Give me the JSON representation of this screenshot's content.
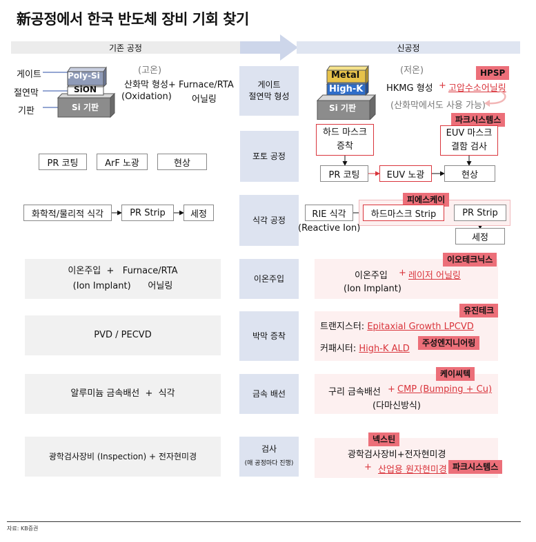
{
  "title": "新공정에서 한국 반도체 장비 기회 찾기",
  "headers": {
    "old": "기존 공정",
    "new": "신공정"
  },
  "categories": [
    {
      "label1": "게이트",
      "label2": "절연막 형성"
    },
    {
      "label1": "포토 공정"
    },
    {
      "label1": "식각 공정"
    },
    {
      "label1": "이온주입"
    },
    {
      "label1": "박막 증착"
    },
    {
      "label1": "금속 배선"
    },
    {
      "label1": "검사",
      "note": "(매 공정마다 진행)"
    }
  ],
  "gate_old": {
    "label_gate": "게이트",
    "label_insul": "절연막",
    "label_sub": "기판",
    "layer_top": "Poly-Si",
    "layer_mid": "SiON",
    "layer_sub": "Si 기판",
    "temp": "(고온)",
    "line1": "산화막 형성+ Furnace/RTA",
    "line2a": "(Oxidation)",
    "line2b": "어닐링"
  },
  "gate_new": {
    "layer_top": "Metal",
    "layer_mid": "High-K",
    "layer_sub": "Si 기판",
    "temp": "(저온)",
    "hkmg": "HKMG 형성",
    "plus": "+",
    "hpsp_item": "고압수소어닐링",
    "note": "(산화막에서도 사용 가능)",
    "tag": "HPSP"
  },
  "photo_old": {
    "n1": "PR 코팅",
    "n2": "ArF 노광",
    "n3": "현상"
  },
  "photo_new": {
    "hard": "하드 마스크\n증착",
    "euv_mask": "EUV 마스크\n결함 검사",
    "n1": "PR 코팅",
    "n2": "EUV 노광",
    "n3": "현상",
    "tag": "파크시스템스"
  },
  "etch_old": {
    "n1": "화학적/물리적 식각",
    "n2": "PR Strip",
    "n3": "세정"
  },
  "etch_new": {
    "rie": "RIE 식각",
    "rie_sub": "(Reactive Ion)",
    "n2": "하드마스크 Strip",
    "n3": "PR Strip",
    "n4": "세정",
    "tag": "피에스케이"
  },
  "ion_old": {
    "line1": "이온주입  +   Furnace/RTA",
    "line2": "(Ion Implant)      어닐링"
  },
  "ion_new": {
    "a": "이온주입",
    "plus": "+",
    "b": "레이저 어닐링",
    "sub": "(Ion Implant)",
    "tag": "이오테크닉스"
  },
  "depo_old": {
    "line1": "PVD / PECVD"
  },
  "depo_new": {
    "l1a": "트랜지스터: ",
    "l1b": "Epitaxial Growth LPCVD",
    "l2a": "커패시터: ",
    "l2b": "High-K ALD",
    "tag1": "유진테크",
    "tag2": "주성엔지니어링"
  },
  "metal_old": {
    "line1": "알루미늄 금속배선  +  식각"
  },
  "metal_new": {
    "a": "구리 금속배선",
    "plus": "+",
    "b": "CMP (Bumping + Cu)",
    "sub": "(다마신방식)",
    "tag": "케이씨텍"
  },
  "insp_old": {
    "line1": "광학검사장비 (Inspection) + 전자현미경"
  },
  "insp_new": {
    "l1": "광학검사장비+전자현미경",
    "plus": "+",
    "b": "산업용 원자현미경",
    "tag1": "넥스틴",
    "tag2": "파크시스템스"
  },
  "source": "자료: KB증권"
}
